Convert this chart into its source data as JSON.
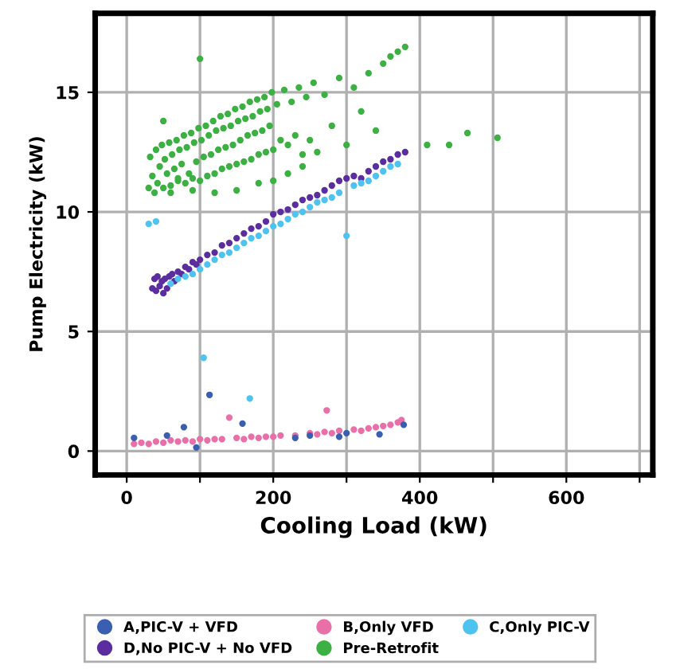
{
  "chart_data": {
    "type": "scatter",
    "xlabel": "Cooling Load (kW)",
    "ylabel": "Pump Electricity (kW)",
    "xlim": [
      -43,
      718
    ],
    "ylim": [
      -1,
      18.3
    ],
    "xticks": [
      0,
      {
        "value": 100,
        "label": null
      },
      200,
      {
        "value": 300,
        "label": null
      },
      400,
      {
        "value": 500,
        "label": null
      },
      600,
      {
        "value": 700,
        "label": null
      }
    ],
    "yticks": [
      0,
      5,
      10,
      15
    ],
    "grid": true,
    "legend": "bottom",
    "marker": "circle",
    "series": [
      {
        "name": "Pre-Retrofit",
        "color": "#3cb043",
        "x": [
          30,
          32,
          35,
          38,
          40,
          42,
          45,
          48,
          50,
          52,
          55,
          58,
          60,
          62,
          65,
          68,
          70,
          72,
          75,
          78,
          80,
          82,
          85,
          88,
          90,
          92,
          95,
          98,
          100,
          102,
          105,
          108,
          110,
          112,
          115,
          118,
          120,
          122,
          125,
          128,
          130,
          132,
          135,
          138,
          140,
          142,
          145,
          148,
          150,
          152,
          155,
          158,
          160,
          162,
          165,
          168,
          170,
          172,
          175,
          178,
          180,
          182,
          185,
          188,
          190,
          192,
          195,
          198,
          200,
          205,
          210,
          215,
          220,
          225,
          230,
          235,
          240,
          245,
          250,
          255,
          260,
          270,
          280,
          290,
          300,
          310,
          320,
          330,
          340,
          350,
          360,
          370,
          380,
          100,
          50,
          410,
          440,
          465,
          506,
          150,
          120,
          90,
          60,
          70,
          180,
          200,
          220,
          240
        ],
        "values": [
          11.0,
          12.3,
          11.5,
          10.8,
          12.6,
          11.2,
          11.9,
          12.8,
          11.0,
          12.2,
          11.6,
          12.9,
          11.1,
          12.4,
          11.8,
          13.0,
          11.3,
          12.6,
          12.0,
          13.2,
          11.2,
          12.7,
          11.6,
          13.3,
          11.4,
          12.9,
          12.1,
          13.5,
          11.3,
          13.0,
          12.3,
          13.6,
          11.5,
          13.2,
          12.4,
          13.8,
          11.6,
          13.4,
          12.6,
          14.0,
          11.8,
          13.5,
          12.7,
          14.1,
          11.9,
          13.6,
          12.8,
          14.3,
          12.0,
          13.8,
          13.0,
          14.4,
          12.1,
          13.9,
          13.2,
          14.6,
          12.2,
          14.0,
          13.3,
          14.7,
          12.4,
          14.2,
          13.4,
          14.8,
          12.5,
          14.3,
          13.6,
          15.0,
          12.6,
          14.5,
          13.0,
          15.1,
          12.8,
          14.6,
          13.2,
          15.2,
          12.4,
          14.8,
          13.0,
          15.4,
          12.5,
          14.9,
          13.6,
          15.6,
          12.8,
          15.2,
          14.2,
          15.8,
          13.4,
          16.2,
          16.5,
          16.7,
          16.9,
          16.4,
          13.8,
          12.8,
          12.8,
          13.3,
          13.1,
          10.9,
          10.8,
          10.9,
          10.8,
          11.4,
          11.2,
          11.3,
          11.6,
          11.9
        ]
      },
      {
        "name": "D,No PIC-V + No VFD",
        "color": "#5b2d9e",
        "x": [
          35,
          38,
          40,
          42,
          45,
          48,
          50,
          52,
          55,
          58,
          60,
          62,
          65,
          70,
          75,
          80,
          85,
          90,
          95,
          100,
          110,
          120,
          130,
          140,
          150,
          160,
          170,
          180,
          190,
          200,
          210,
          220,
          230,
          240,
          250,
          260,
          270,
          280,
          290,
          300,
          310,
          320,
          330,
          340,
          350,
          360,
          370,
          380
        ],
        "values": [
          6.8,
          7.2,
          6.7,
          7.3,
          6.9,
          7.1,
          6.6,
          7.2,
          6.8,
          7.3,
          null,
          7.4,
          7.1,
          7.5,
          7.4,
          7.7,
          7.6,
          7.9,
          7.8,
          8.0,
          8.2,
          8.3,
          8.6,
          8.7,
          8.9,
          9.1,
          9.3,
          9.4,
          9.6,
          9.9,
          10.0,
          10.1,
          10.3,
          10.5,
          10.6,
          10.7,
          10.9,
          11.1,
          11.3,
          11.4,
          11.5,
          11.4,
          11.7,
          11.9,
          12.1,
          12.2,
          12.4,
          12.5
        ]
      },
      {
        "name": "C,Only PIC-V",
        "color": "#4fc3ef",
        "x": [
          30,
          40,
          60,
          70,
          80,
          90,
          100,
          110,
          120,
          130,
          140,
          150,
          160,
          170,
          180,
          190,
          200,
          210,
          220,
          230,
          240,
          250,
          260,
          270,
          280,
          290,
          300,
          310,
          320,
          330,
          340,
          350,
          360,
          370,
          105,
          168
        ],
        "values": [
          9.5,
          9.6,
          7.0,
          7.2,
          7.3,
          7.4,
          7.6,
          7.8,
          8.0,
          8.2,
          8.3,
          8.5,
          8.7,
          8.9,
          9.0,
          9.2,
          9.4,
          9.5,
          9.7,
          9.9,
          10.0,
          10.2,
          10.4,
          10.5,
          10.6,
          10.8,
          9.0,
          11.1,
          11.2,
          11.3,
          11.5,
          11.7,
          11.9,
          12.0,
          3.9,
          2.2
        ]
      },
      {
        "name": "B,Only VFD",
        "color": "#e86fa8",
        "x": [
          10,
          20,
          30,
          40,
          50,
          60,
          70,
          80,
          90,
          100,
          110,
          120,
          130,
          140,
          150,
          160,
          170,
          180,
          190,
          200,
          210,
          220,
          230,
          240,
          250,
          260,
          270,
          280,
          290,
          300,
          310,
          320,
          330,
          340,
          350,
          360,
          370,
          375,
          273
        ],
        "values": [
          0.3,
          0.35,
          0.3,
          0.4,
          0.35,
          0.45,
          0.4,
          0.45,
          0.4,
          0.5,
          0.45,
          0.5,
          0.5,
          1.4,
          0.55,
          0.5,
          0.6,
          0.55,
          0.6,
          0.6,
          0.65,
          null,
          0.65,
          null,
          0.75,
          0.7,
          0.8,
          0.75,
          0.85,
          null,
          0.9,
          0.85,
          0.95,
          1.0,
          1.05,
          1.1,
          1.2,
          1.3,
          1.7
        ]
      },
      {
        "name": "A,PIC-V + VFD",
        "color": "#3a5fb0",
        "x": [
          10,
          55,
          78,
          95,
          113,
          158,
          230,
          250,
          290,
          300,
          345,
          378
        ],
        "values": [
          0.55,
          0.65,
          1.0,
          0.15,
          2.35,
          1.15,
          0.55,
          0.65,
          0.6,
          0.75,
          0.7,
          1.1
        ]
      }
    ]
  }
}
